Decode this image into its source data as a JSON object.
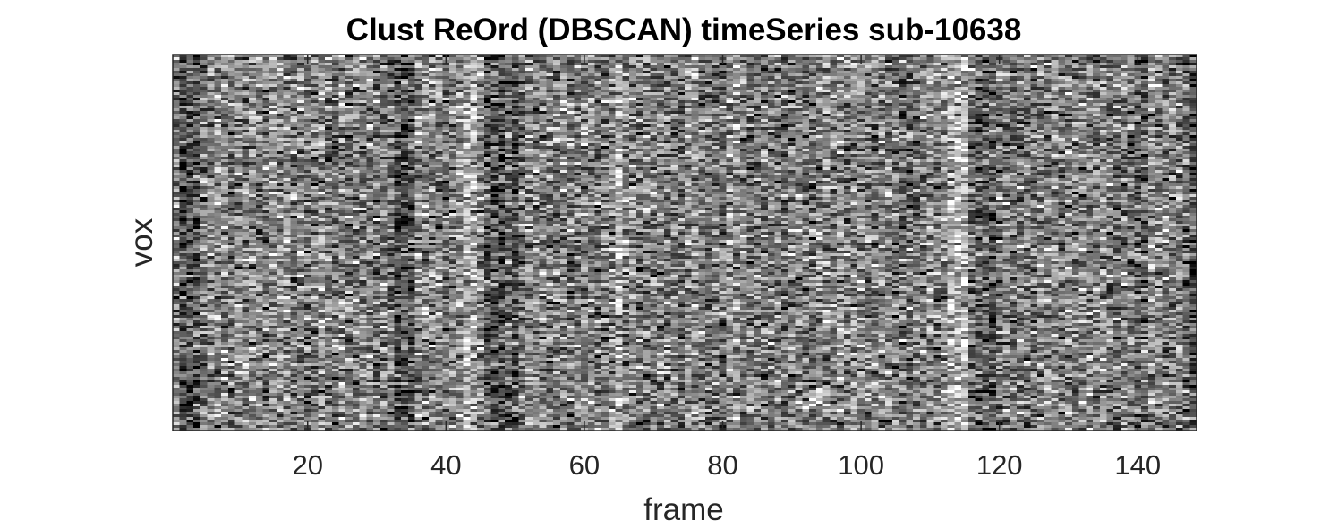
{
  "chart_data": {
    "type": "heatmap",
    "title": "Clust ReOrd (DBSCAN) timeSeries sub-10638",
    "xlabel": "frame",
    "ylabel": "vox",
    "xlim": [
      0.5,
      148.5
    ],
    "x_ticks": [
      20,
      40,
      60,
      80,
      100,
      120,
      140
    ],
    "x_tick_labels": [
      "20",
      "40",
      "60",
      "80",
      "100",
      "120",
      "140"
    ],
    "y_ticks": [],
    "colormap": "gray",
    "grid": false,
    "legend": "none",
    "frames": 148,
    "voxels": 140,
    "dark_frame_bands": [
      2,
      3,
      4,
      33,
      34,
      35,
      46,
      47,
      48,
      49,
      50,
      117,
      118,
      119,
      140,
      141,
      147,
      148
    ],
    "bright_frame_bands": [
      43,
      44,
      65,
      113,
      114,
      115
    ],
    "colors": {
      "low": "#000000",
      "high": "#ffffff",
      "axis": "#262626",
      "background": "#ffffff"
    }
  }
}
